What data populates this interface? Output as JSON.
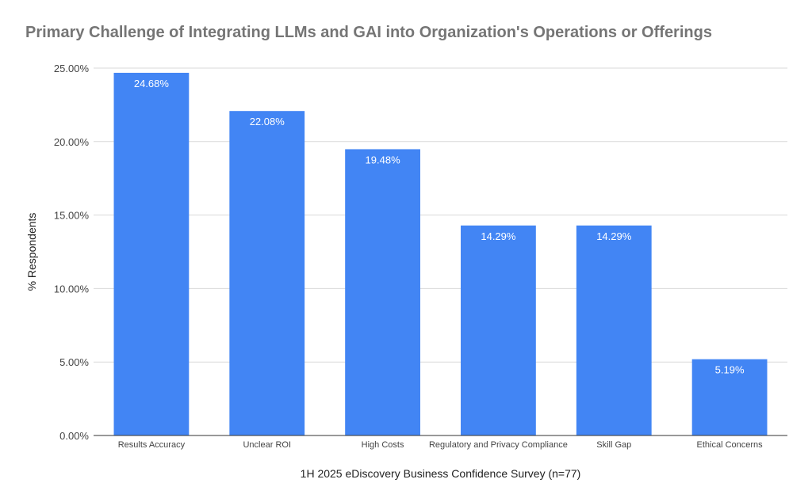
{
  "chart_data": {
    "type": "bar",
    "title": "Primary Challenge of Integrating LLMs and GAI into Organization's Operations or Offerings",
    "xlabel": "1H 2025 eDiscovery Business Confidence Survey (n=77)",
    "ylabel": "% Respondents",
    "categories": [
      "Results Accuracy",
      "Unclear ROI",
      "High Costs",
      "Regulatory and Privacy Compliance",
      "Skill Gap",
      "Ethical Concerns"
    ],
    "values": [
      24.68,
      22.08,
      19.48,
      14.29,
      14.29,
      5.19
    ],
    "value_labels": [
      "24.68%",
      "22.08%",
      "19.48%",
      "14.29%",
      "14.29%",
      "5.19%"
    ],
    "ylim": [
      0,
      25
    ],
    "yticks": [
      0,
      5,
      10,
      15,
      20,
      25
    ],
    "ytick_labels": [
      "0.00%",
      "5.00%",
      "10.00%",
      "15.00%",
      "20.00%",
      "25.00%"
    ],
    "grid": true,
    "legend": "none",
    "bar_color": "#4285f4",
    "grid_color": "#d9d9d9",
    "axis_color": "#333333"
  }
}
